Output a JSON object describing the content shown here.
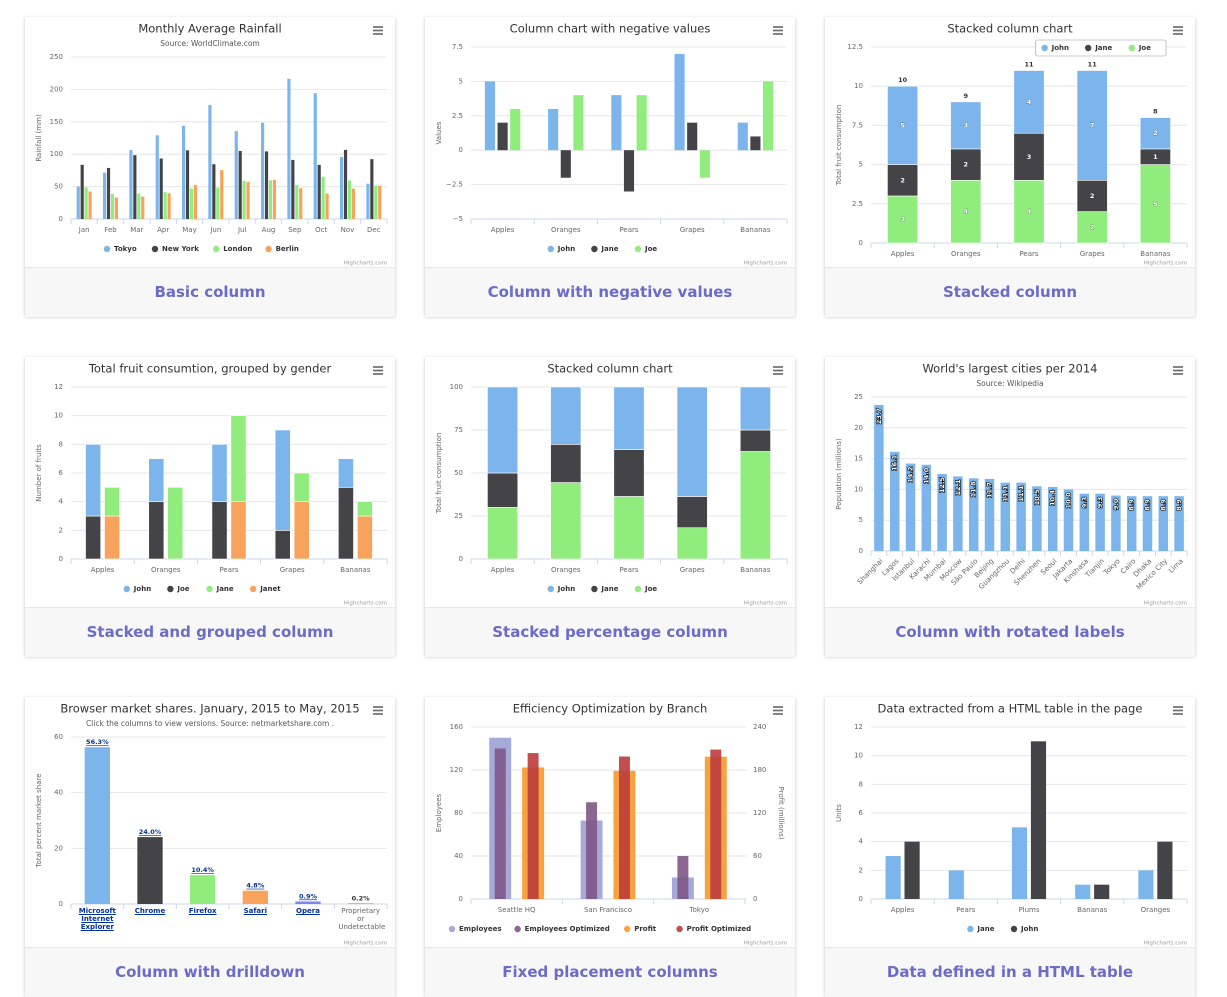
{
  "chart_data": [
    {
      "type": "column",
      "title": "Monthly Average Rainfall",
      "subtitle": "Source: WorldClimate.com",
      "categories": [
        "Jan",
        "Feb",
        "Mar",
        "Apr",
        "May",
        "Jun",
        "Jul",
        "Aug",
        "Sep",
        "Oct",
        "Nov",
        "Dec"
      ],
      "series": [
        {
          "name": "Tokyo",
          "color": "#7cb5ec",
          "values": [
            49.9,
            71.5,
            106.4,
            129.2,
            144.0,
            176.0,
            135.6,
            148.5,
            216.4,
            194.1,
            95.6,
            54.4
          ]
        },
        {
          "name": "New York",
          "color": "#434348",
          "values": [
            83.6,
            78.8,
            98.5,
            93.4,
            106.0,
            84.5,
            105.0,
            104.3,
            91.2,
            83.5,
            106.6,
            92.3
          ]
        },
        {
          "name": "London",
          "color": "#90ed7d",
          "values": [
            48.9,
            38.8,
            39.3,
            41.4,
            47.0,
            48.3,
            59.0,
            59.6,
            52.4,
            65.2,
            59.3,
            51.2
          ]
        },
        {
          "name": "Berlin",
          "color": "#f7a35c",
          "values": [
            42.4,
            33.2,
            34.5,
            39.7,
            52.6,
            75.5,
            57.4,
            60.4,
            47.6,
            39.1,
            46.8,
            51.1
          ]
        }
      ],
      "ylim": [
        0,
        250
      ],
      "yticks": [
        0,
        50,
        100,
        150,
        200,
        250
      ],
      "ylabel": "Rainfall (mm)",
      "grid": true,
      "legend": "bottom",
      "credit": "Highcharts.com"
    },
    {
      "type": "column",
      "title": "Column chart with negative values",
      "categories": [
        "Apples",
        "Oranges",
        "Pears",
        "Grapes",
        "Bananas"
      ],
      "series": [
        {
          "name": "John",
          "color": "#7cb5ec",
          "values": [
            5,
            3,
            4,
            7,
            2
          ]
        },
        {
          "name": "Jane",
          "color": "#434348",
          "values": [
            2,
            -2,
            -3,
            2,
            1
          ]
        },
        {
          "name": "Joe",
          "color": "#90ed7d",
          "values": [
            3,
            4,
            4,
            -2,
            5
          ]
        }
      ],
      "ylim": [
        -5,
        7.5
      ],
      "yticks": [
        {
          "value": -5,
          "label": "−5"
        },
        {
          "value": -2.5,
          "label": "−2.5"
        },
        0,
        2.5,
        5,
        7.5
      ],
      "ylabel": "Values",
      "grid": true,
      "legend": "bottom",
      "credit": "Highcharts.com"
    },
    {
      "type": "column",
      "title": "Stacked column chart",
      "stacking": "normal",
      "categories": [
        "Apples",
        "Oranges",
        "Pears",
        "Grapes",
        "Bananas"
      ],
      "series": [
        {
          "name": "John",
          "color": "#7cb5ec",
          "values": [
            5,
            3,
            4,
            7,
            2
          ]
        },
        {
          "name": "Jane",
          "color": "#434348",
          "values": [
            2,
            2,
            3,
            2,
            1
          ]
        },
        {
          "name": "Joe",
          "color": "#90ed7d",
          "values": [
            3,
            4,
            4,
            2,
            5
          ]
        }
      ],
      "stack_totals": [
        10,
        9,
        11,
        11,
        8
      ],
      "data_labels": "inside",
      "ylim": [
        0,
        12.5
      ],
      "yticks": [
        0,
        2.5,
        5,
        7.5,
        10,
        12.5
      ],
      "ylabel": "Total fruit consumption",
      "grid": true,
      "legend": "top-right",
      "credit": "Highcharts.com"
    },
    {
      "type": "column",
      "title": "Total fruit consumtion, grouped by gender",
      "stacking": "normal",
      "categories": [
        "Apples",
        "Oranges",
        "Pears",
        "Grapes",
        "Bananas"
      ],
      "series": [
        {
          "name": "John",
          "color": "#7cb5ec",
          "stack": "male",
          "values": [
            5,
            3,
            4,
            7,
            2
          ]
        },
        {
          "name": "Joe",
          "color": "#434348",
          "stack": "male",
          "values": [
            3,
            4,
            4,
            2,
            5
          ]
        },
        {
          "name": "Jane",
          "color": "#90ed7d",
          "stack": "female",
          "values": [
            2,
            5,
            6,
            2,
            1
          ]
        },
        {
          "name": "Janet",
          "color": "#f7a35c",
          "stack": "female",
          "values": [
            3,
            0,
            4,
            4,
            3
          ]
        }
      ],
      "ylim": [
        0,
        12
      ],
      "yticks": [
        0,
        2,
        4,
        6,
        8,
        10,
        12
      ],
      "ylabel": "Number of fruits",
      "grid": true,
      "legend": "bottom",
      "credit": "Highcharts.com"
    },
    {
      "type": "column",
      "title": "Stacked column chart",
      "stacking": "percent",
      "categories": [
        "Apples",
        "Oranges",
        "Pears",
        "Grapes",
        "Bananas"
      ],
      "series": [
        {
          "name": "John",
          "color": "#7cb5ec",
          "values": [
            5,
            3,
            4,
            7,
            2
          ]
        },
        {
          "name": "Jane",
          "color": "#434348",
          "values": [
            2,
            2,
            3,
            2,
            1
          ]
        },
        {
          "name": "Joe",
          "color": "#90ed7d",
          "values": [
            3,
            4,
            4,
            2,
            5
          ]
        }
      ],
      "ylim": [
        0,
        100
      ],
      "yticks": [
        0,
        25,
        50,
        75,
        100
      ],
      "ylabel": "Total fruit consumption",
      "grid": true,
      "legend": "bottom",
      "credit": "Highcharts.com"
    },
    {
      "type": "column",
      "title": "World's largest cities per 2014",
      "subtitle": "Source: Wikipedia",
      "categories": [
        "Shanghai",
        "Lagos",
        "Istanbul",
        "Karachi",
        "Mumbai",
        "Moscow",
        "São Paulo",
        "Beijing",
        "Guangzhou",
        "Delhi",
        "Shenzhen",
        "Seoul",
        "Jakarta",
        "Kinshasa",
        "Tianjin",
        "Tokyo",
        "Cairo",
        "Dhaka",
        "Mexico City",
        "Lima"
      ],
      "series": [
        {
          "name": "Population",
          "color": "#7cb5ec",
          "values": [
            23.7,
            16.1,
            14.2,
            14.0,
            12.5,
            12.1,
            11.8,
            11.7,
            11.1,
            11.1,
            10.5,
            10.4,
            10.0,
            9.3,
            9.3,
            9.0,
            8.9,
            8.9,
            8.9,
            8.9
          ],
          "value_labels": [
            "23.7",
            "16.1",
            "14.2",
            "14.0",
            "12.5",
            "12.1",
            "11.8",
            "11.7",
            "11.1",
            "11.1",
            "10.5",
            "10.4",
            "10.0",
            "9.3",
            "9.3",
            "9.0",
            "8.9",
            "8.9",
            "8.9",
            "8.9"
          ]
        }
      ],
      "data_labels": "inside-rotated",
      "xlabel_rotation": -45,
      "ylim": [
        0,
        25
      ],
      "yticks": [
        0,
        5,
        10,
        15,
        20,
        25
      ],
      "ylabel": "Population (millions)",
      "grid": true,
      "legend": "none",
      "credit": "Highcharts.com"
    },
    {
      "type": "column",
      "title": "Browser market shares. January, 2015 to May, 2015",
      "subtitle": "Click the columns to view versions. Source: netmarketshare.com .",
      "categories": [
        "Microsoft Internet Explorer",
        "Chrome",
        "Firefox",
        "Safari",
        "Opera",
        "Proprietary or Undetectable"
      ],
      "drilldown": [
        true,
        true,
        true,
        true,
        true,
        false
      ],
      "series": [
        {
          "colors": [
            "#7cb5ec",
            "#434348",
            "#90ed7d",
            "#f7a35c",
            "#8085e9",
            "#f15c80"
          ],
          "values": [
            56.33,
            24.03,
            10.38,
            4.77,
            0.91,
            0.2
          ],
          "value_labels": [
            "56.3%",
            "24.0%",
            "10.4%",
            "4.8%",
            "0.9%",
            "0.2%"
          ]
        }
      ],
      "data_labels": "above",
      "wrap_labels": true,
      "ylim": [
        0,
        60
      ],
      "yticks": [
        0,
        20,
        40,
        60
      ],
      "ylabel": "Total percent market share",
      "grid": true,
      "legend": "none",
      "credit": "Highcharts.com"
    },
    {
      "type": "column",
      "title": "Efficiency Optimization by Branch",
      "categories": [
        "Seattle HQ",
        "San Francisco",
        "Tokyo"
      ],
      "series": [
        {
          "name": "Employees",
          "color": "rgba(165,170,217,1)",
          "values": [
            150,
            73,
            20
          ]
        },
        {
          "name": "Employees Optimized",
          "color": "rgba(126,86,134,0.9)",
          "values": [
            140,
            90,
            40
          ]
        },
        {
          "name": "Profit",
          "color": "rgba(248,161,63,1)",
          "axis": "y2",
          "values": [
            183.6,
            178.8,
            198.5
          ]
        },
        {
          "name": "Profit Optimized",
          "color": "rgba(186,60,61,0.9)",
          "axis": "y2",
          "values": [
            203.6,
            198.8,
            208.5
          ]
        }
      ],
      "ylim": [
        0,
        160
      ],
      "yticks": [
        0,
        40,
        80,
        120,
        160
      ],
      "ylabel": "Employees",
      "y2lim": [
        0,
        240
      ],
      "y2ticks": [
        0,
        60,
        120,
        180,
        240
      ],
      "y2label": "Profit (millions)",
      "grid": true,
      "legend": "bottom",
      "credit": "Highcharts.com"
    },
    {
      "type": "column",
      "title": "Data extracted from a HTML table in the page",
      "categories": [
        "Apples",
        "Pears",
        "Plums",
        "Bananas",
        "Oranges"
      ],
      "series": [
        {
          "name": "Jane",
          "color": "#7cb5ec",
          "values": [
            3,
            2,
            5,
            1,
            2
          ]
        },
        {
          "name": "John",
          "color": "#434348",
          "values": [
            4,
            null,
            11,
            1,
            4
          ]
        }
      ],
      "ylim": [
        0,
        12
      ],
      "yticks": [
        0,
        2,
        4,
        6,
        8,
        10,
        12
      ],
      "ylabel": "Units",
      "grid": true,
      "legend": "bottom",
      "credit": "Highcharts.com"
    }
  ],
  "captions": [
    "Basic column",
    "Column with negative values",
    "Stacked column",
    "Stacked and grouped column",
    "Stacked percentage column",
    "Column with rotated labels",
    "Column with drilldown",
    "Fixed placement columns",
    "Data defined in a HTML table"
  ]
}
